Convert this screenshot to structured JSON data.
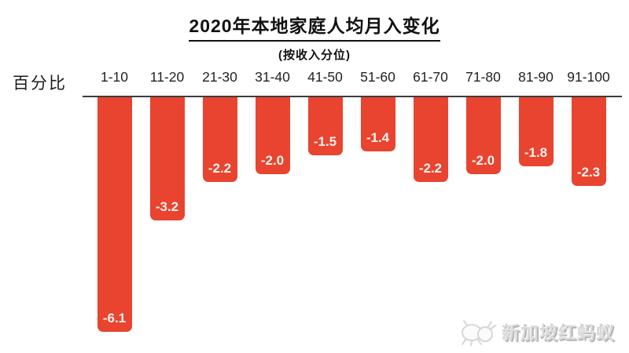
{
  "title": "2020年本地家庭人均月入变化",
  "subtitle": "(按收入分位)",
  "y_axis_label": "百分比",
  "watermark": {
    "text": "新加坡红蚂蚁",
    "icon": "ant-logo-icon"
  },
  "colors": {
    "bar": "#E8442F",
    "baseline": "#3d3d3d",
    "value_label": "#ffffff",
    "category_label": "#222222",
    "watermark": "#d9d9d9"
  },
  "chart_data": {
    "type": "bar",
    "title": "2020年本地家庭人均月入变化",
    "subtitle": "(按收入分位)",
    "ylabel": "百分比",
    "xlabel": "",
    "categories": [
      "1-10",
      "11-20",
      "21-30",
      "31-40",
      "41-50",
      "51-60",
      "61-70",
      "71-80",
      "81-90",
      "91-100"
    ],
    "values": [
      -6.1,
      -3.2,
      -2.2,
      -2.0,
      -1.5,
      -1.4,
      -2.2,
      -2.0,
      -1.8,
      -2.3
    ],
    "value_labels": [
      "-6.1",
      "-3.2",
      "-2.2",
      "-2.0",
      "-1.5",
      "-1.4",
      "-2.2",
      "-2.0",
      "-1.8",
      "-2.3"
    ],
    "ylim": [
      -6.5,
      0
    ],
    "bar_color": "#E8442F",
    "grid": false,
    "legend": false,
    "orientation": "columns-extending-downward-from-zero-baseline"
  }
}
